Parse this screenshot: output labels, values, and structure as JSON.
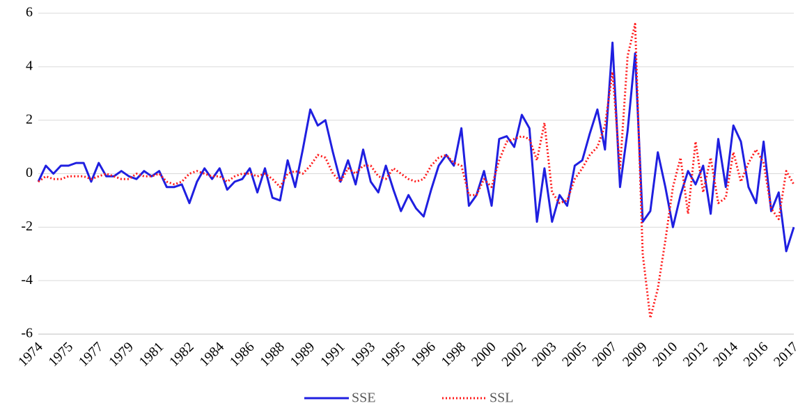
{
  "chart_data": {
    "type": "line",
    "categories": [
      "1974",
      null,
      null,
      null,
      "1975",
      null,
      null,
      null,
      "1977",
      null,
      null,
      null,
      "1979",
      null,
      null,
      null,
      "1981",
      null,
      null,
      null,
      "1982",
      null,
      null,
      null,
      "1984",
      null,
      null,
      null,
      "1986",
      null,
      null,
      null,
      "1988",
      null,
      null,
      null,
      "1989",
      null,
      null,
      null,
      "1991",
      null,
      null,
      null,
      "1993",
      null,
      null,
      null,
      "1995",
      null,
      null,
      null,
      "1996",
      null,
      null,
      null,
      "1998",
      null,
      null,
      null,
      "2000",
      null,
      null,
      null,
      "2002",
      null,
      null,
      null,
      "2003",
      null,
      null,
      null,
      "2005",
      null,
      null,
      null,
      "2007",
      null,
      null,
      null,
      "2009",
      null,
      null,
      null,
      "2010",
      null,
      null,
      null,
      "2012",
      null,
      null,
      null,
      "2014",
      null,
      null,
      null,
      "2016",
      null,
      null,
      null,
      "2017"
    ],
    "series": [
      {
        "name": "SSE",
        "color": "#1f1fe0",
        "dash": false,
        "values": [
          -0.3,
          0.3,
          0.0,
          0.3,
          0.3,
          0.4,
          0.4,
          -0.3,
          0.4,
          -0.1,
          -0.1,
          0.1,
          -0.1,
          -0.2,
          0.1,
          -0.1,
          0.1,
          -0.5,
          -0.5,
          -0.4,
          -1.1,
          -0.3,
          0.2,
          -0.2,
          0.2,
          -0.6,
          -0.3,
          -0.2,
          0.2,
          -0.7,
          0.2,
          -0.9,
          -1.0,
          0.5,
          -0.5,
          0.9,
          2.4,
          1.8,
          2.0,
          0.8,
          -0.3,
          0.5,
          -0.4,
          0.9,
          -0.3,
          -0.7,
          0.3,
          -0.6,
          -1.4,
          -0.8,
          -1.3,
          -1.6,
          -0.6,
          0.3,
          0.7,
          0.3,
          1.7,
          -1.2,
          -0.8,
          0.1,
          -1.2,
          1.3,
          1.4,
          1.0,
          2.2,
          1.7,
          -1.8,
          0.2,
          -1.8,
          -0.8,
          -1.2,
          0.3,
          0.5,
          1.5,
          2.4,
          0.9,
          4.9,
          -0.5,
          1.6,
          4.5,
          -1.8,
          -1.4,
          0.8,
          -0.5,
          -2.0,
          -0.8,
          0.1,
          -0.4,
          0.3,
          -1.5,
          1.3,
          -0.5,
          1.8,
          1.2,
          -0.5,
          -1.1,
          1.2,
          -1.4,
          -0.7,
          -2.9,
          -2.0
        ]
      },
      {
        "name": "SSL",
        "color": "#ff1a1a",
        "dash": true,
        "values": [
          -0.3,
          -0.1,
          -0.2,
          -0.2,
          -0.1,
          -0.1,
          -0.1,
          -0.2,
          -0.1,
          0.0,
          -0.1,
          -0.2,
          -0.2,
          0.0,
          -0.1,
          -0.1,
          0.0,
          -0.3,
          -0.4,
          -0.3,
          0.0,
          0.1,
          0.0,
          -0.1,
          -0.1,
          -0.3,
          -0.1,
          0.0,
          0.0,
          -0.1,
          0.0,
          -0.2,
          -0.5,
          0.0,
          0.1,
          0.0,
          0.3,
          0.7,
          0.6,
          0.0,
          -0.3,
          0.2,
          0.0,
          0.3,
          0.3,
          -0.1,
          -0.2,
          0.2,
          0.0,
          -0.2,
          -0.3,
          -0.2,
          0.3,
          0.6,
          0.7,
          0.4,
          0.3,
          -0.8,
          -0.8,
          -0.2,
          -0.5,
          0.5,
          1.2,
          1.3,
          1.4,
          1.3,
          0.5,
          1.9,
          -0.7,
          -1.1,
          -1.0,
          -0.2,
          0.2,
          0.7,
          1.0,
          1.8,
          3.8,
          0.2,
          4.4,
          5.6,
          -3.0,
          -5.4,
          -4.3,
          -2.5,
          -0.5,
          0.6,
          -1.5,
          1.2,
          -0.7,
          0.6,
          -1.1,
          -0.9,
          0.8,
          -0.3,
          0.4,
          0.9,
          0.4,
          -1.3,
          -1.7,
          0.1,
          -0.4
        ]
      }
    ],
    "ylim": [
      -6,
      6
    ],
    "yticks": [
      -6,
      -4,
      -2,
      0,
      2,
      4,
      6
    ],
    "grid": true,
    "legend": "bottom"
  }
}
